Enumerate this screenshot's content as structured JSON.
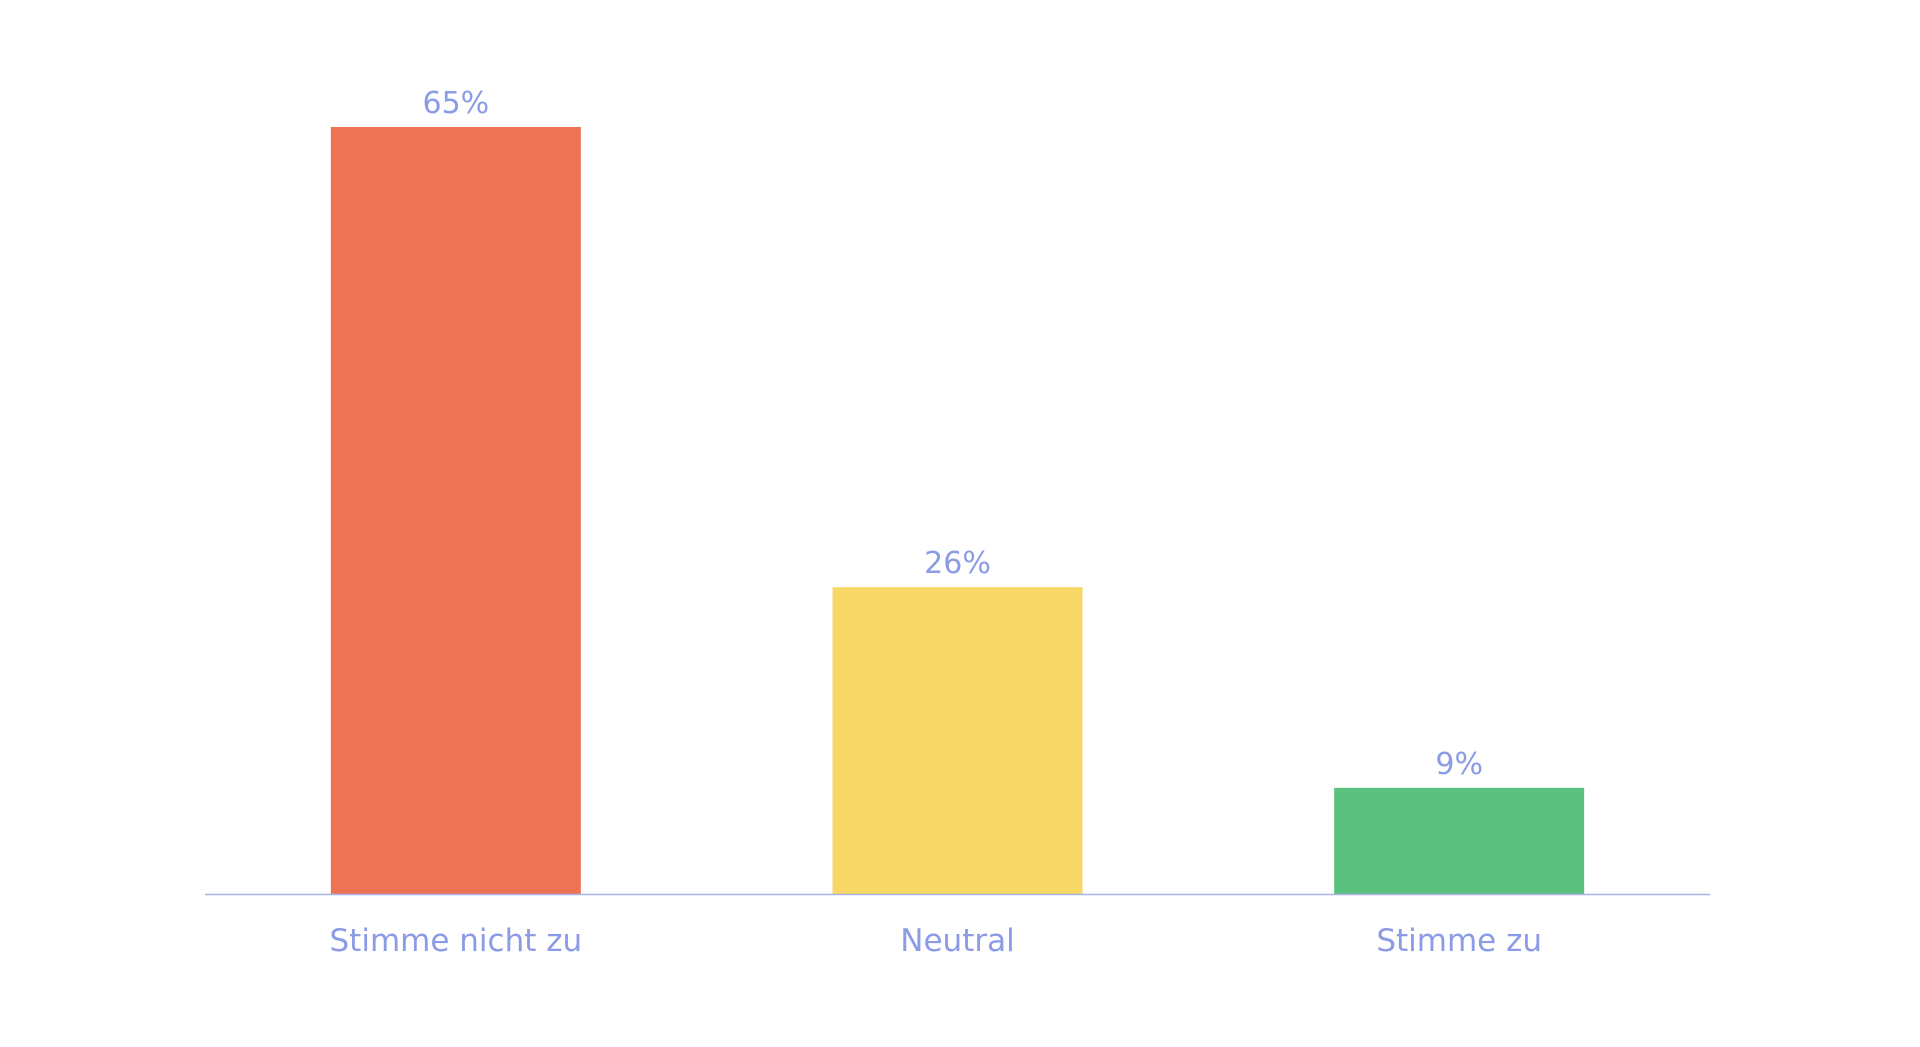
{
  "chart_data": {
    "type": "bar",
    "categories": [
      "Stimme nicht zu",
      "Neutral",
      "Stimme zu"
    ],
    "values": [
      65,
      26,
      9
    ],
    "value_labels": [
      "65%",
      "26%",
      "9%"
    ],
    "unit": "%",
    "title": "",
    "xlabel": "",
    "ylabel": "",
    "ylim": [
      0,
      65
    ],
    "grid": false,
    "legend": "none",
    "colors": {
      "bars": [
        "#ec7354",
        "#f7d765",
        "#5ac17f"
      ],
      "labels": "#8b9be6",
      "axis": "#a9b3ea",
      "background": "#ffffff"
    }
  }
}
